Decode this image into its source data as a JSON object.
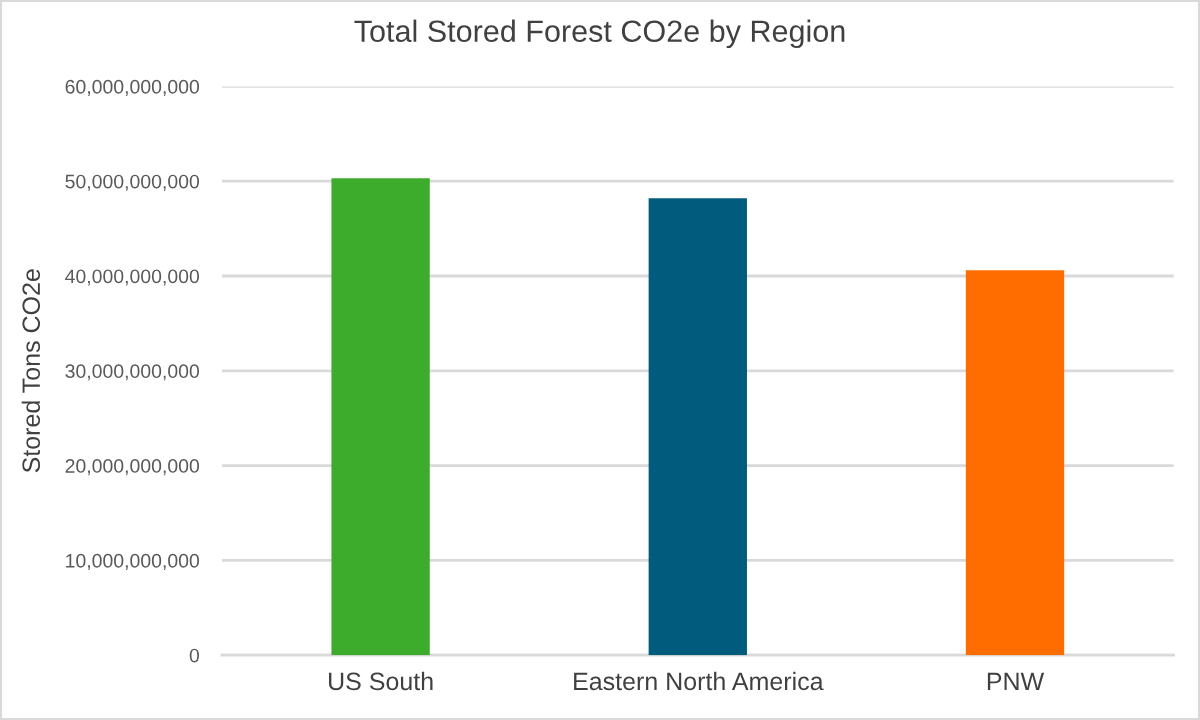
{
  "chart_data": {
    "type": "bar",
    "title": "Total Stored Forest CO2e by Region",
    "ylabel": "Stored Tons CO2e",
    "categories": [
      "US South",
      "Eastern North America",
      "PNW"
    ],
    "values": [
      50300000000,
      48200000000,
      40600000000
    ],
    "colors": [
      "#3dab2c",
      "#005b7c",
      "#ff6d00"
    ],
    "ylim": [
      0,
      60000000000
    ],
    "yticks": [
      {
        "value": 0,
        "label": "0"
      },
      {
        "value": 10000000000,
        "label": "10,000,000,000"
      },
      {
        "value": 20000000000,
        "label": "20,000,000,000"
      },
      {
        "value": 30000000000,
        "label": "30,000,000,000"
      },
      {
        "value": 40000000000,
        "label": "40,000,000,000"
      },
      {
        "value": 50000000000,
        "label": "50,000,000,000"
      },
      {
        "value": 60000000000,
        "label": "60,000,000,000"
      }
    ],
    "grid": "y"
  }
}
